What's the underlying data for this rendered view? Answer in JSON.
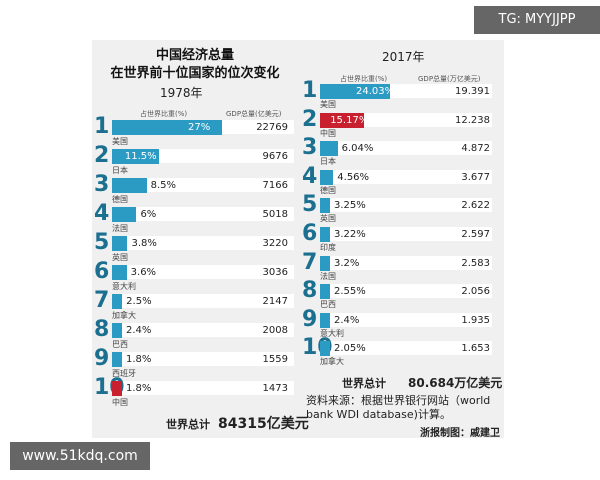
{
  "watermarks": {
    "top_right": "TG: MYYJJPP",
    "bottom_left": "www.51kdq.com"
  },
  "title_line1": "中国经济总量",
  "title_line2": "在世界前十位国家的位次变化",
  "colors": {
    "bar": "#2b9bc4",
    "china_bar": "#c8202f",
    "rank": "#1b6f8f"
  },
  "chart_data": [
    {
      "type": "bar",
      "title": "1978年",
      "share_header": "占世界比重(%)",
      "gdp_header": "GDP总量(亿美元)",
      "ranks": [
        "1",
        "2",
        "3",
        "4",
        "5",
        "6",
        "7",
        "8",
        "9",
        "10"
      ],
      "categories": [
        "美国",
        "日本",
        "德国",
        "法国",
        "英国",
        "意大利",
        "加拿大",
        "巴西",
        "西班牙",
        "中国"
      ],
      "share_labels": [
        "27%",
        "11.5%",
        "8.5%",
        "6%",
        "3.8%",
        "3.6%",
        "2.5%",
        "2.4%",
        "1.8%",
        "1.8%"
      ],
      "share_values": [
        27,
        11.5,
        8.5,
        6,
        3.8,
        3.6,
        2.5,
        2.4,
        1.8,
        1.8
      ],
      "gdp_values": [
        "22769",
        "9676",
        "7166",
        "5018",
        "3220",
        "3036",
        "2147",
        "2008",
        "1559",
        "1473"
      ],
      "highlight_index": 9,
      "total_label": "世界总计",
      "total_value": "84315亿美元"
    },
    {
      "type": "bar",
      "title": "2017年",
      "share_header": "占世界比重(%)",
      "gdp_header": "GDP总量(万亿美元)",
      "ranks": [
        "1",
        "2",
        "3",
        "4",
        "5",
        "6",
        "7",
        "8",
        "9",
        "10"
      ],
      "categories": [
        "美国",
        "中国",
        "日本",
        "德国",
        "英国",
        "印度",
        "法国",
        "巴西",
        "意大利",
        "加拿大"
      ],
      "share_labels": [
        "24.03%",
        "15.17%",
        "6.04%",
        "4.56%",
        "3.25%",
        "3.22%",
        "3.2%",
        "2.55%",
        "2.4%",
        "2.05%"
      ],
      "share_values": [
        24.03,
        15.17,
        6.04,
        4.56,
        3.25,
        3.22,
        3.2,
        2.55,
        2.4,
        2.05
      ],
      "gdp_values": [
        "19.391",
        "12.238",
        "4.872",
        "3.677",
        "2.622",
        "2.597",
        "2.583",
        "2.056",
        "1.935",
        "1.653"
      ],
      "highlight_index": 1,
      "total_label": "世界总计",
      "total_value": "80.684万亿美元"
    }
  ],
  "source_lines": [
    "资料来源：根据世界银行网站（world",
    "bank WDI database)计算。"
  ],
  "credit": "浙报制图：戚建卫"
}
